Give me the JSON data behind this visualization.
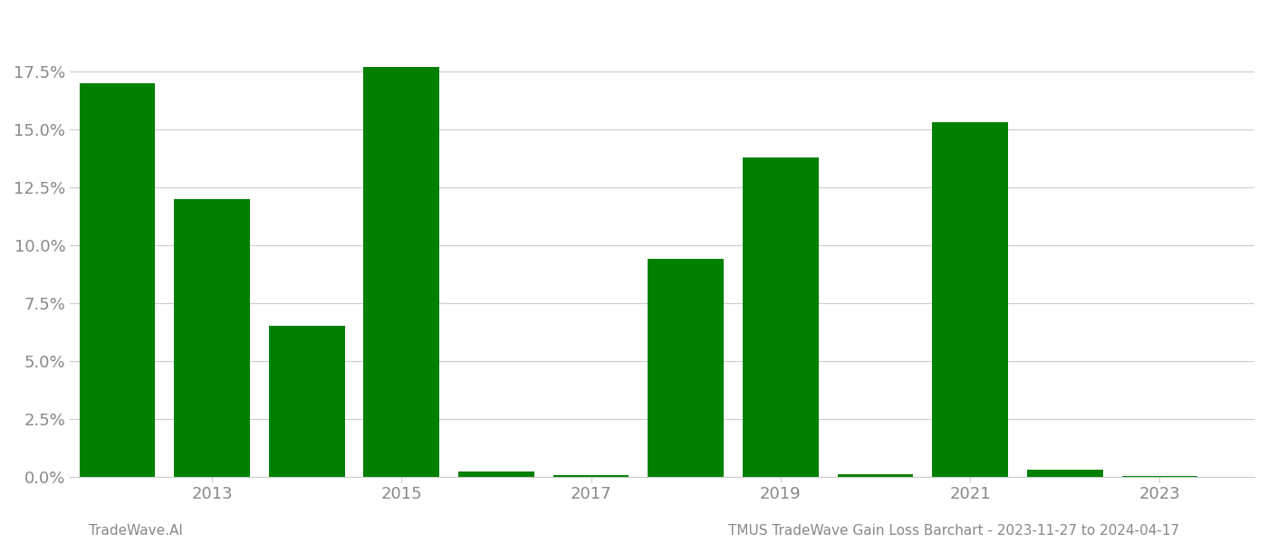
{
  "years": [
    2012,
    2013,
    2014,
    2015,
    2016,
    2017,
    2018,
    2019,
    2020,
    2021,
    2022,
    2023
  ],
  "values": [
    0.17,
    0.12,
    0.065,
    0.177,
    0.002,
    0.0005,
    0.094,
    0.138,
    0.001,
    0.153,
    0.003,
    0.0003
  ],
  "bar_color": "#008000",
  "background_color": "#ffffff",
  "grid_color": "#cccccc",
  "ytick_labels": [
    "0.0%",
    "2.5%",
    "5.0%",
    "7.5%",
    "10.0%",
    "12.5%",
    "15.0%",
    "17.5%"
  ],
  "ytick_values": [
    0.0,
    0.025,
    0.05,
    0.075,
    0.1,
    0.125,
    0.15,
    0.175
  ],
  "ylim": [
    0,
    0.2
  ],
  "xtick_years": [
    2013,
    2015,
    2017,
    2019,
    2021,
    2023
  ],
  "footer_left": "TradeWave.AI",
  "footer_right": "TMUS TradeWave Gain Loss Barchart - 2023-11-27 to 2024-04-17",
  "footer_fontsize": 11,
  "axis_label_color": "#888888",
  "tick_label_fontsize": 13,
  "bar_width": 0.8
}
